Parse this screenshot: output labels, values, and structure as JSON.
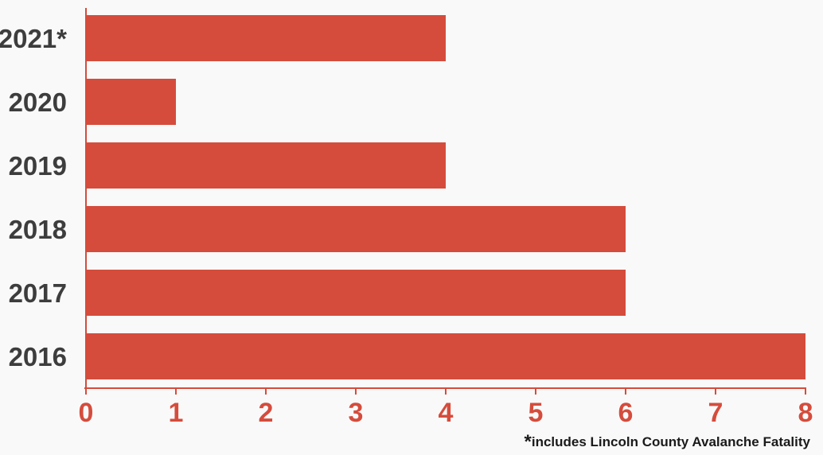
{
  "chart_data": {
    "type": "bar",
    "orientation": "horizontal",
    "categories": [
      "2016",
      "2017",
      "2018",
      "2019",
      "2020",
      "2021*"
    ],
    "values": [
      8,
      6,
      6,
      4,
      1,
      4
    ],
    "xlim": [
      0,
      8
    ],
    "x_ticks": [
      "0",
      "1",
      "2",
      "3",
      "4",
      "5",
      "6",
      "7",
      "8"
    ],
    "title": "",
    "xlabel": "",
    "ylabel": "",
    "grid": false,
    "legend": "none"
  },
  "footnote": {
    "marker": "*",
    "text": "includes Lincoln County Avalanche Fatality"
  },
  "colors": {
    "bar": "#d54c3c",
    "axis": "#d54c3c",
    "tick_label": "#d54c3c",
    "category_label": "#3d3d3d",
    "background": "#f9f9f9"
  }
}
